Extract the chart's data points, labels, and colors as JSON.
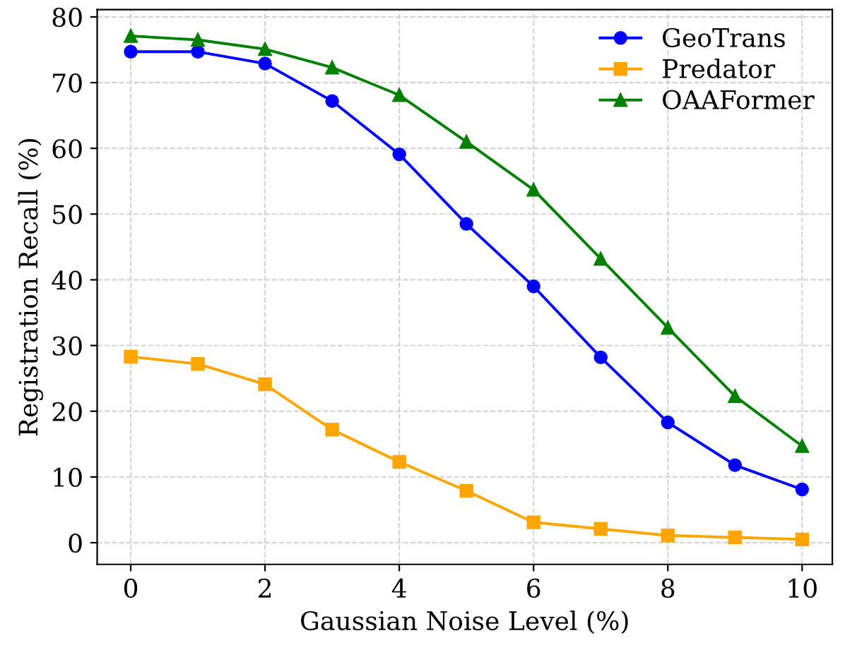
{
  "chart_data": {
    "type": "line",
    "xlabel": "Gaussian Noise Level (%)",
    "ylabel": "Registration Recall (%)",
    "x": [
      0,
      1,
      2,
      3,
      4,
      5,
      6,
      7,
      8,
      9,
      10
    ],
    "series": [
      {
        "name": "GeoTrans",
        "color": "#0000ff",
        "marker": "circle",
        "values": [
          74.7,
          74.7,
          72.9,
          67.2,
          59.1,
          48.5,
          39.0,
          28.2,
          18.3,
          11.8,
          8.1
        ]
      },
      {
        "name": "Predator",
        "color": "#ffa500",
        "marker": "square",
        "values": [
          28.3,
          27.2,
          24.1,
          17.2,
          12.3,
          7.9,
          3.1,
          2.1,
          1.1,
          0.8,
          0.5
        ]
      },
      {
        "name": "OAAFormer",
        "color": "#008000",
        "marker": "triangle",
        "values": [
          77.1,
          76.5,
          75.1,
          72.3,
          68.1,
          61.0,
          53.7,
          43.2,
          32.7,
          22.3,
          14.7
        ]
      }
    ],
    "xlim": [
      -0.5,
      10.45
    ],
    "ylim": [
      -3.3,
      81.1
    ],
    "xticks": [
      0,
      2,
      4,
      6,
      8,
      10
    ],
    "yticks": [
      0,
      10,
      20,
      30,
      40,
      50,
      60,
      70,
      80
    ],
    "grid": true,
    "legend": "top right",
    "line_style": "solid"
  }
}
